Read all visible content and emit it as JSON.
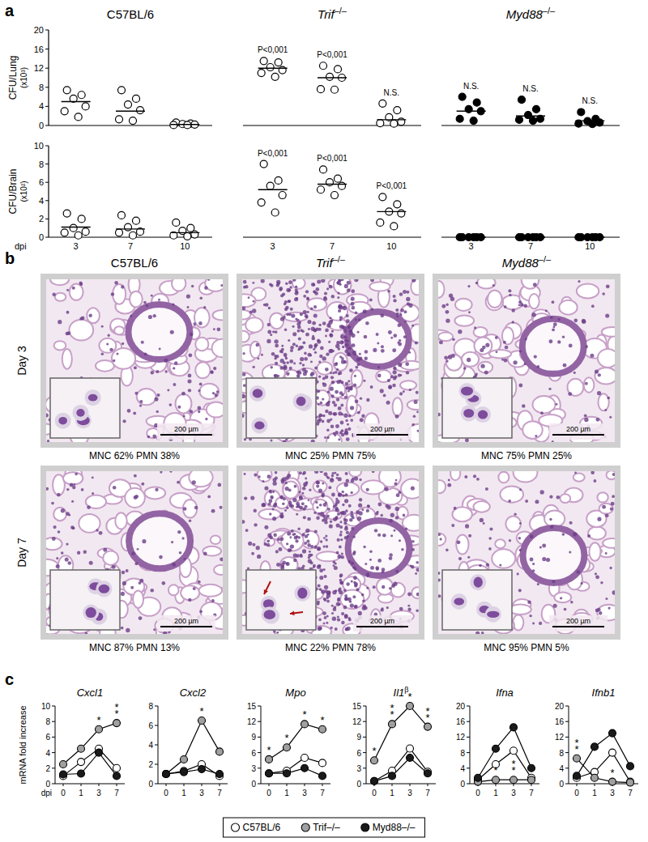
{
  "panel_labels": [
    "a",
    "b",
    "c"
  ],
  "chart_data": [
    {
      "type": "scatter",
      "title": "C57BL/6",
      "y_label": "CFU/Lung",
      "y_unit": "(x10³)",
      "categories": [
        "3",
        "7",
        "10"
      ],
      "values": [
        [
          7.4,
          6.4,
          5.6,
          4.0,
          3.0,
          1.8
        ],
        [
          7.4,
          5.6,
          4.4,
          3.2,
          1.3,
          1.0
        ],
        [
          0.6,
          0.4,
          0.3,
          0.2,
          0.1,
          0.1
        ]
      ],
      "medians": [
        5,
        3,
        0.2
      ],
      "color": "#ffffff",
      "marker": "circle",
      "ylim": [
        0,
        20
      ],
      "yticks": [
        0,
        4,
        8,
        12,
        16,
        20
      ],
      "tick_labels": "y"
    },
    {
      "type": "scatter",
      "title": "Trif–/–",
      "categories": [
        "3",
        "7",
        "10"
      ],
      "values": [
        [
          13.5,
          13.2,
          12.2,
          11.6,
          11.0,
          10.2
        ],
        [
          12.5,
          11.8,
          10.2,
          10.0,
          7.6,
          7.5
        ],
        [
          4.6,
          3.2,
          1.7,
          0.8,
          0.5,
          0.4
        ]
      ],
      "medians": [
        12,
        10,
        1.2
      ],
      "annotations": [
        "P<0,001",
        "P<0,001",
        "N.S."
      ],
      "color": "#ffffff",
      "marker": "circle",
      "ylim": [
        0,
        20
      ],
      "tick_labels": false
    },
    {
      "type": "scatter",
      "title": "Myd88–/–",
      "categories": [
        "3",
        "7",
        "10"
      ],
      "values": [
        [
          6.0,
          4.8,
          3.4,
          3.0,
          1.4,
          1.0
        ],
        [
          5.4,
          3.4,
          2.2,
          1.4,
          1.2,
          1.0
        ],
        [
          2.8,
          1.4,
          0.9,
          0.6,
          0.4,
          0.3
        ]
      ],
      "medians": [
        3,
        2,
        1
      ],
      "annotations": [
        "N.S.",
        "N.S.",
        "N.S."
      ],
      "color": "#000000",
      "marker": "circle",
      "ylim": [
        0,
        20
      ],
      "tick_labels": false
    },
    {
      "type": "scatter",
      "y_label": "CFU/Brain",
      "y_unit": "(x10²)",
      "x_label": "dpi",
      "categories": [
        "3",
        "7",
        "10"
      ],
      "values": [
        [
          2.6,
          2.0,
          1.0,
          0.6,
          0.5,
          0.2
        ],
        [
          2.4,
          1.8,
          1.1,
          0.6,
          0.5,
          0.2
        ],
        [
          1.6,
          1.0,
          0.7,
          0.3,
          0.2,
          0.1
        ]
      ],
      "medians": [
        1.1,
        0.9,
        0.5
      ],
      "color": "#ffffff",
      "marker": "circle",
      "ylim": [
        0,
        10
      ],
      "yticks": [
        0,
        2,
        4,
        6,
        8,
        10
      ]
    },
    {
      "type": "scatter",
      "categories": [
        "3",
        "7",
        "10"
      ],
      "values": [
        [
          8.0,
          6.2,
          5.6,
          4.6,
          3.8,
          2.7
        ],
        [
          7.4,
          6.4,
          6.0,
          5.6,
          5.2,
          4.6
        ],
        [
          4.4,
          3.6,
          2.8,
          2.6,
          1.6,
          1.2
        ]
      ],
      "medians": [
        5.2,
        5.8,
        2.8
      ],
      "annotations": [
        "P<0,001",
        "P<0,001",
        "P<0,001"
      ],
      "color": "#ffffff",
      "marker": "circle",
      "ylim": [
        0,
        10
      ],
      "tick_labels": "x"
    },
    {
      "type": "scatter",
      "categories": [
        "3",
        "7",
        "10"
      ],
      "values": [
        [
          0,
          0,
          0,
          0,
          0,
          0
        ],
        [
          0,
          0,
          0,
          0,
          0,
          0
        ],
        [
          0,
          0,
          0,
          0,
          0,
          0
        ]
      ],
      "medians": [
        0,
        0,
        0
      ],
      "color": "#000000",
      "marker": "circle",
      "ylim": [
        0,
        10
      ],
      "tick_labels": "x"
    },
    {
      "type": "line",
      "title": "Cxcl1",
      "y_label": "mRNA fold increase",
      "x_label": "dpi",
      "legend": "bottom",
      "categories": [
        "0",
        "1",
        "3",
        "7"
      ],
      "ylim": [
        0,
        10
      ],
      "yticks": [
        0,
        2,
        4,
        6,
        8,
        10
      ],
      "series": [
        {
          "name": "C57BL/6",
          "color": "#ffffff",
          "marker": "circle",
          "values": [
            1,
            2.8,
            4.5,
            2
          ]
        },
        {
          "name": "Trif–/–",
          "color": "#a0a0a0",
          "marker": "circle",
          "values": [
            2.5,
            4.5,
            7,
            7.8
          ],
          "annotations": [
            null,
            null,
            "*",
            "**"
          ]
        },
        {
          "name": "Myd88–/–",
          "color": "#1a1a1a",
          "marker": "circle",
          "values": [
            1.2,
            1.3,
            4,
            1
          ]
        }
      ]
    },
    {
      "type": "line",
      "title": "Cxcl2",
      "categories": [
        "0",
        "1",
        "3",
        "7"
      ],
      "ylim": [
        0,
        8
      ],
      "yticks": [
        0,
        2,
        4,
        6,
        8
      ],
      "series": [
        {
          "color": "#ffffff",
          "marker": "circle",
          "values": [
            1,
            1.3,
            2,
            0.8
          ]
        },
        {
          "color": "#a0a0a0",
          "marker": "circle",
          "values": [
            1,
            2.5,
            6.5,
            3.3
          ],
          "annotations": [
            null,
            null,
            "*",
            null
          ]
        },
        {
          "color": "#1a1a1a",
          "marker": "circle",
          "values": [
            1,
            1.2,
            1.5,
            1
          ]
        }
      ]
    },
    {
      "type": "line",
      "title": "Mpo",
      "categories": [
        "0",
        "1",
        "3",
        "7"
      ],
      "ylim": [
        0,
        15
      ],
      "yticks": [
        0,
        3,
        6,
        9,
        12,
        15
      ],
      "series": [
        {
          "color": "#ffffff",
          "marker": "circle",
          "values": [
            2,
            2.5,
            5,
            4
          ]
        },
        {
          "color": "#a0a0a0",
          "marker": "circle",
          "values": [
            4.7,
            7,
            11.5,
            10.5
          ],
          "annotations": [
            "*",
            "*",
            "*",
            "*"
          ]
        },
        {
          "color": "#1a1a1a",
          "marker": "circle",
          "values": [
            2,
            2,
            3,
            1.5
          ]
        }
      ]
    },
    {
      "type": "line",
      "title": "Il1β",
      "categories": [
        "0",
        "1",
        "3",
        "7"
      ],
      "ylim": [
        0,
        15
      ],
      "yticks": [
        0,
        3,
        6,
        9,
        12,
        15
      ],
      "series": [
        {
          "color": "#ffffff",
          "marker": "circle",
          "values": [
            0.5,
            2.5,
            6.8,
            2.3
          ]
        },
        {
          "color": "#a0a0a0",
          "marker": "circle",
          "values": [
            4.5,
            11.5,
            15,
            11
          ],
          "annotations": [
            "*",
            "**",
            "*",
            "**"
          ]
        },
        {
          "color": "#1a1a1a",
          "marker": "circle",
          "values": [
            0.5,
            1.5,
            5,
            2
          ]
        }
      ]
    },
    {
      "type": "line",
      "title": "Ifna",
      "categories": [
        "0",
        "1",
        "3",
        "7"
      ],
      "ylim": [
        0,
        20
      ],
      "yticks": [
        0,
        4,
        8,
        12,
        16,
        20
      ],
      "series": [
        {
          "color": "#ffffff",
          "marker": "circle",
          "values": [
            1,
            5,
            8.5,
            1.5
          ]
        },
        {
          "color": "#a0a0a0",
          "marker": "circle",
          "values": [
            0.5,
            1,
            1,
            1
          ],
          "annotations": [
            null,
            "*",
            "**",
            null
          ]
        },
        {
          "color": "#1a1a1a",
          "marker": "circle",
          "values": [
            1.5,
            9,
            14.5,
            4
          ]
        }
      ]
    },
    {
      "type": "line",
      "title": "Ifnb1",
      "categories": [
        "0",
        "1",
        "3",
        "7"
      ],
      "ylim": [
        0,
        20
      ],
      "yticks": [
        0,
        4,
        8,
        12,
        16,
        20
      ],
      "series": [
        {
          "color": "#ffffff",
          "marker": "circle",
          "values": [
            1.5,
            3,
            8,
            0.5
          ]
        },
        {
          "color": "#a0a0a0",
          "marker": "circle",
          "values": [
            6.5,
            1.5,
            0.5,
            0.3
          ],
          "annotations": [
            "**",
            null,
            "*",
            null
          ]
        },
        {
          "color": "#1a1a1a",
          "marker": "circle",
          "values": [
            2,
            9.5,
            13,
            4.5
          ]
        }
      ]
    }
  ],
  "histology": {
    "columns": [
      "C57BL/6",
      "Trif–/–",
      "Myd88–/–"
    ],
    "rows": [
      "Day 3",
      "Day 7"
    ],
    "captions": [
      [
        "MNC 62% PMN 38%",
        "MNC 25% PMN 75%",
        "MNC 75% PMN 25%"
      ],
      [
        "MNC 87% PMN 13%",
        "MNC 22% PMN 78%",
        "MNC 95% PMN 5%"
      ]
    ],
    "scale_bar": "200 µm"
  }
}
